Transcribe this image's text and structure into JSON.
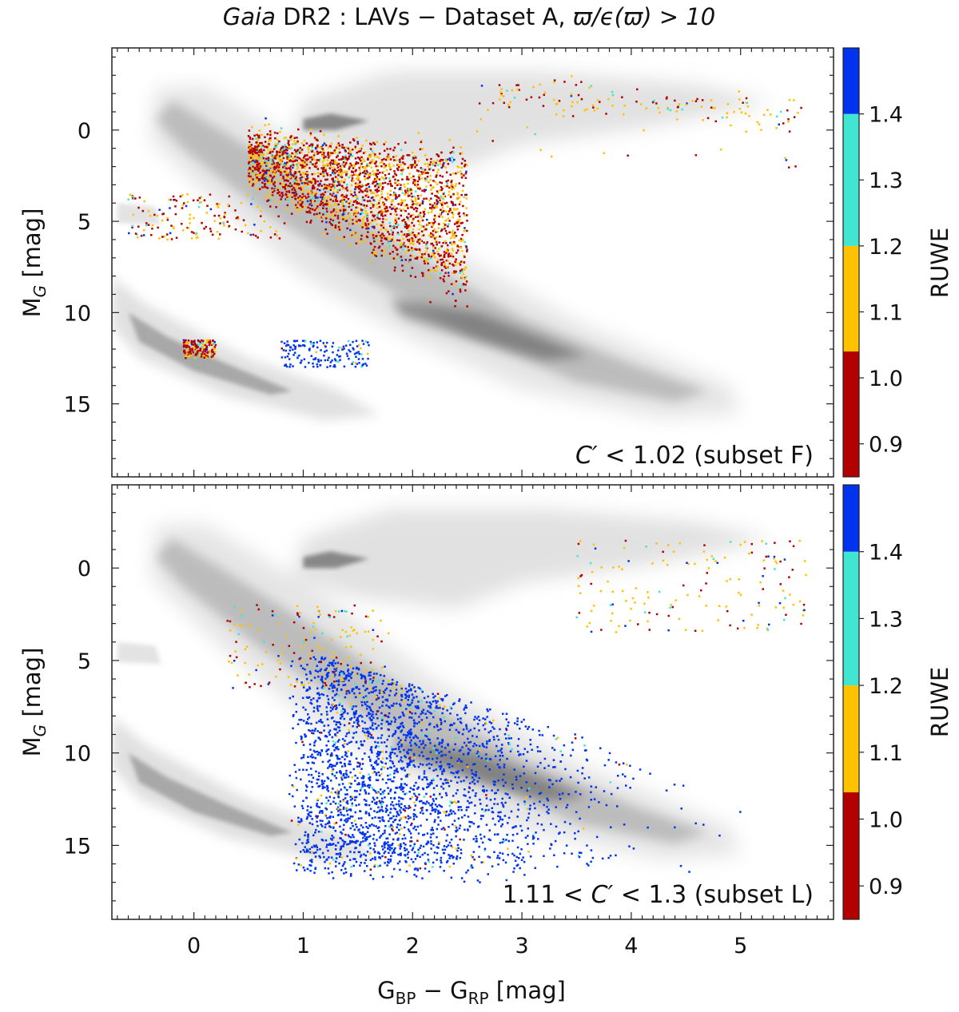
{
  "chart_data": {
    "title": {
      "italic": "Gaia",
      "rest": " DR2 : LAVs  −  Dataset A, ",
      "math": "ϖ/ϵ(ϖ) > 10"
    },
    "type": "scatter",
    "shared_x": {
      "xlabel_parts": [
        "G",
        "BP",
        " − G",
        "RP",
        "  [mag]"
      ],
      "xlim": [
        -0.75,
        5.85
      ],
      "xticks": [
        0,
        1,
        2,
        3,
        4,
        5
      ]
    },
    "panels": [
      {
        "id": "subset-F",
        "ylabel_parts": [
          "M",
          "G",
          " [mag]"
        ],
        "ylim": [
          19.0,
          -4.5
        ],
        "yticks": [
          0,
          5,
          10,
          15
        ],
        "annotation_parts": [
          "C′",
          " < 1.02 (subset F)"
        ],
        "background": "grey density of full Gaia DR2 sample (main sequence, giant branch, white dwarfs)",
        "highlighted_regions": [
          {
            "description": "dense lower-MS cloud",
            "x_range": [
              0.4,
              2.6
            ],
            "y_range": [
              0.5,
              9.5
            ],
            "dominant_ruwe": 1.0
          },
          {
            "description": "giant branch / red clump",
            "x_range": [
              2.5,
              5.6
            ],
            "y_range": [
              -2.5,
              1.5
            ],
            "dominant_ruwe": 1.1
          },
          {
            "description": "blue stragglers / hot stars",
            "x_range": [
              -0.6,
              0.8
            ],
            "y_range": [
              3.5,
              6.0
            ],
            "dominant_ruwe": 1.0
          },
          {
            "description": "white-dwarf clump",
            "x_range": [
              -0.1,
              0.2
            ],
            "y_range": [
              11.5,
              12.5
            ],
            "dominant_ruwe": 1.0
          },
          {
            "description": "high-RUWE points",
            "x_range": [
              0.8,
              1.6
            ],
            "y_range": [
              11.5,
              13.0
            ],
            "dominant_ruwe": 1.4
          }
        ]
      },
      {
        "id": "subset-L",
        "ylabel_parts": [
          "M",
          "G",
          " [mag]"
        ],
        "ylim": [
          19.0,
          -4.5
        ],
        "yticks": [
          0,
          5,
          10,
          15
        ],
        "annotation_parts": [
          "1.11 < ",
          "C′",
          " < 1.3 (subset L)"
        ],
        "background": "grey density of full Gaia DR2 sample (main sequence, giant branch, white dwarfs)",
        "highlighted_regions": [
          {
            "description": "dense M-dwarf cloud",
            "x_range": [
              0.8,
              3.8
            ],
            "y_range": [
              3.5,
              16.5
            ],
            "dominant_ruwe": 1.4
          },
          {
            "description": "upper main sequence edge",
            "x_range": [
              0.3,
              1.8
            ],
            "y_range": [
              2.0,
              6.5
            ],
            "dominant_ruwe": 1.1
          },
          {
            "description": "sparse red giants",
            "x_range": [
              3.5,
              5.6
            ],
            "y_range": [
              -1.5,
              3.5
            ],
            "dominant_ruwe": 1.1
          }
        ]
      }
    ],
    "colorbar": {
      "label": "RUWE",
      "range": [
        0.85,
        1.5
      ],
      "ticks": [
        0.9,
        1.0,
        1.1,
        1.2,
        1.3,
        1.4
      ],
      "bins": [
        {
          "from": 0.85,
          "to": 1.04,
          "color": "#b30000"
        },
        {
          "from": 1.04,
          "to": 1.2,
          "color": "#ffc200"
        },
        {
          "from": 1.2,
          "to": 1.4,
          "color": "#40e6d2"
        },
        {
          "from": 1.4,
          "to": 1.5,
          "color": "#0033ee"
        }
      ]
    }
  }
}
